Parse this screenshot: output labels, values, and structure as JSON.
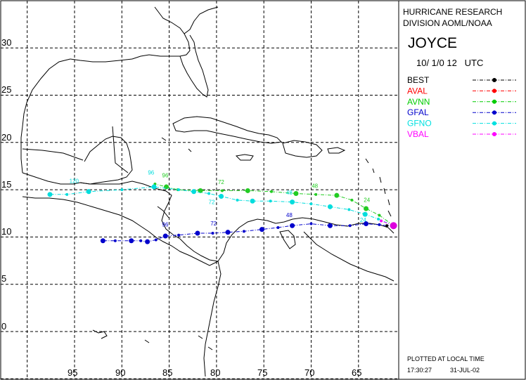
{
  "header": {
    "org_line1": "HURRICANE RESEARCH",
    "org_line2": "DIVISION AOML/NOAA",
    "storm_name": "JOYCE",
    "datetime": "10/ 1/0 12   UTC"
  },
  "axes": {
    "lat_labels": [
      "30",
      "25",
      "20",
      "15",
      "10",
      "5",
      "0"
    ],
    "lon_labels": [
      "95",
      "90",
      "85",
      "80",
      "75",
      "70",
      "65"
    ]
  },
  "legend": [
    {
      "name": "BEST",
      "color": "#000000"
    },
    {
      "name": "AVAL",
      "color": "#ff0000"
    },
    {
      "name": "AVNN",
      "color": "#00cc00"
    },
    {
      "name": "GFAL",
      "color": "#0000cc"
    },
    {
      "name": "GFNO",
      "color": "#00e0e0"
    },
    {
      "name": "VBAL",
      "color": "#ff00ff"
    }
  ],
  "tracks": {
    "AVNN": {
      "color": "#22cc22",
      "points": [
        [
          -61.3,
          11.2
        ],
        [
          -62.8,
          12.3
        ],
        [
          -64.2,
          13.0
        ],
        [
          -65.7,
          13.9
        ],
        [
          -67.3,
          14.4
        ],
        [
          -69.5,
          14.5
        ],
        [
          -71.6,
          14.6
        ],
        [
          -74.2,
          14.8
        ],
        [
          -76.7,
          14.9
        ],
        [
          -79.4,
          14.9
        ],
        [
          -81.7,
          14.9
        ],
        [
          -84.1,
          15.0
        ],
        [
          -85.3,
          15.3
        ],
        [
          -86.5,
          15.6
        ]
      ],
      "labels": [
        {
          "text": "24",
          "at": [
            -64.0,
            13.7
          ]
        },
        {
          "text": "48",
          "at": [
            -69.5,
            15.2
          ]
        },
        {
          "text": "72",
          "at": [
            -79.4,
            15.6
          ]
        },
        {
          "text": "96",
          "at": [
            -85.3,
            16.3
          ]
        }
      ]
    },
    "GFNO": {
      "color": "#00dddd",
      "points": [
        [
          -61.3,
          11.2
        ],
        [
          -62.9,
          11.9
        ],
        [
          -64.3,
          12.4
        ],
        [
          -66.0,
          12.9
        ],
        [
          -68.0,
          13.2
        ],
        [
          -70.0,
          13.5
        ],
        [
          -72.0,
          13.7
        ],
        [
          -74.3,
          13.8
        ],
        [
          -76.2,
          13.8
        ],
        [
          -77.8,
          13.9
        ],
        [
          -79.5,
          14.3
        ],
        [
          -80.8,
          14.6
        ],
        [
          -82.4,
          14.8
        ],
        [
          -84.0,
          15.0
        ],
        [
          -86.6,
          15.3
        ],
        [
          -90.0,
          15.0
        ],
        [
          -93.5,
          14.8
        ],
        [
          -95.8,
          14.5
        ],
        [
          -97.6,
          14.5
        ]
      ],
      "labels": [
        {
          "text": "24",
          "at": [
            -64.4,
            11.6
          ]
        },
        {
          "text": "48",
          "at": [
            -72.2,
            14.5
          ]
        },
        {
          "text": "72",
          "at": [
            -80.4,
            13.5
          ]
        },
        {
          "text": "96",
          "at": [
            -86.8,
            16.6
          ]
        },
        {
          "text": "120",
          "at": [
            -95.1,
            15.7
          ]
        }
      ]
    },
    "GFAL": {
      "color": "#0000cc",
      "points": [
        [
          -61.3,
          11.1
        ],
        [
          -62.8,
          11.3
        ],
        [
          -64.2,
          11.4
        ],
        [
          -65.9,
          11.2
        ],
        [
          -68.0,
          11.2
        ],
        [
          -70.0,
          11.4
        ],
        [
          -72.0,
          11.2
        ],
        [
          -73.5,
          11.0
        ],
        [
          -75.2,
          10.8
        ],
        [
          -77.1,
          10.6
        ],
        [
          -78.8,
          10.5
        ],
        [
          -80.4,
          10.4
        ],
        [
          -82.0,
          10.4
        ],
        [
          -84.0,
          10.2
        ],
        [
          -85.4,
          10.1
        ],
        [
          -86.4,
          9.7
        ],
        [
          -87.3,
          9.5
        ],
        [
          -88.0,
          9.6
        ],
        [
          -89.0,
          9.6
        ],
        [
          -90.7,
          9.6
        ],
        [
          -92.0,
          9.6
        ]
      ],
      "labels": [
        {
          "text": "48",
          "at": [
            -72.2,
            12.1
          ]
        },
        {
          "text": "72",
          "at": [
            -80.2,
            11.2
          ]
        },
        {
          "text": "96",
          "at": [
            -85.3,
            11.1
          ]
        }
      ]
    },
    "BEST": {
      "color": "#000000",
      "points": [
        [
          -61.3,
          11.2
        ],
        [
          -62.0,
          11.2
        ]
      ],
      "labels": []
    },
    "VBAL": {
      "color": "#ff00ff",
      "points": [
        [
          -61.3,
          11.2
        ],
        [
          -62.6,
          11.7
        ]
      ],
      "labels": []
    }
  },
  "footer": {
    "plotted_note": "PLOTTED AT LOCAL TIME",
    "time": "17:30:27",
    "date": "31-JUL-02"
  }
}
